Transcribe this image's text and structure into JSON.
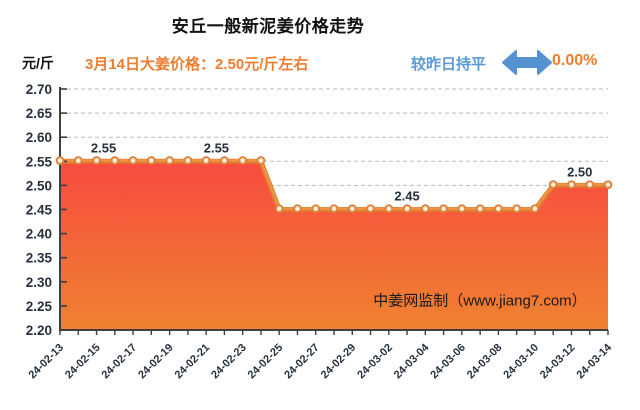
{
  "title": "安丘一般新泥姜价格走势",
  "y_unit_label": "元/斤",
  "subtitle": "3月14日大姜价格：2.50元/斤左右",
  "trend_badge": {
    "label": "较昨日持平",
    "icon": "left-right-arrow-icon",
    "change_pct": "0.00%"
  },
  "watermark": "中姜网监制（www.jiang7.com）",
  "colors": {
    "accent_orange": "#ED7D31",
    "trend_blue": "#5B9BD5",
    "arrow_blue": "#5592D2",
    "area_top": "#F84B40",
    "area_bottom": "#EF8230",
    "line_light": "#F09243",
    "line_dark": "#DD7E2E",
    "marker_fill": "#FFEFD9",
    "marker_stroke": "#E0813A",
    "grid": "#BBBBBB",
    "axis": "#3F3F3F",
    "tick_text": "#26313D"
  },
  "chart_data": {
    "type": "area",
    "title": "安丘一般新泥姜价格走势",
    "ylabel": "元/斤",
    "ylim": [
      2.2,
      2.7
    ],
    "y_ticks": [
      "2.20",
      "2.25",
      "2.30",
      "2.35",
      "2.40",
      "2.45",
      "2.50",
      "2.55",
      "2.60",
      "2.65",
      "2.70"
    ],
    "grid": "horizontal-dashed",
    "legend": "none",
    "x_label_every": 2,
    "x": [
      "24-02-13",
      "24-02-14",
      "24-02-15",
      "24-02-16",
      "24-02-17",
      "24-02-18",
      "24-02-19",
      "24-02-20",
      "24-02-21",
      "24-02-22",
      "24-02-23",
      "24-02-24",
      "24-02-25",
      "24-02-26",
      "24-02-27",
      "24-02-28",
      "24-02-29",
      "24-03-01",
      "24-03-02",
      "24-03-03",
      "24-03-04",
      "24-03-05",
      "24-03-06",
      "24-03-07",
      "24-03-08",
      "24-03-09",
      "24-03-10",
      "24-03-11",
      "24-03-12",
      "24-03-13",
      "24-03-14"
    ],
    "values": [
      2.55,
      2.55,
      2.55,
      2.55,
      2.55,
      2.55,
      2.55,
      2.55,
      2.55,
      2.55,
      2.55,
      2.55,
      2.45,
      2.45,
      2.45,
      2.45,
      2.45,
      2.45,
      2.45,
      2.45,
      2.45,
      2.45,
      2.45,
      2.45,
      2.45,
      2.45,
      2.45,
      2.5,
      2.5,
      2.5,
      2.5
    ],
    "point_labels": [
      {
        "index": 2,
        "text": "2.55",
        "dx": 7
      },
      {
        "index": 9,
        "text": "2.55",
        "dx": -8
      },
      {
        "index": 19,
        "text": "2.45",
        "dx": 0
      },
      {
        "index": 29,
        "text": "2.50",
        "dx": -10
      }
    ]
  }
}
